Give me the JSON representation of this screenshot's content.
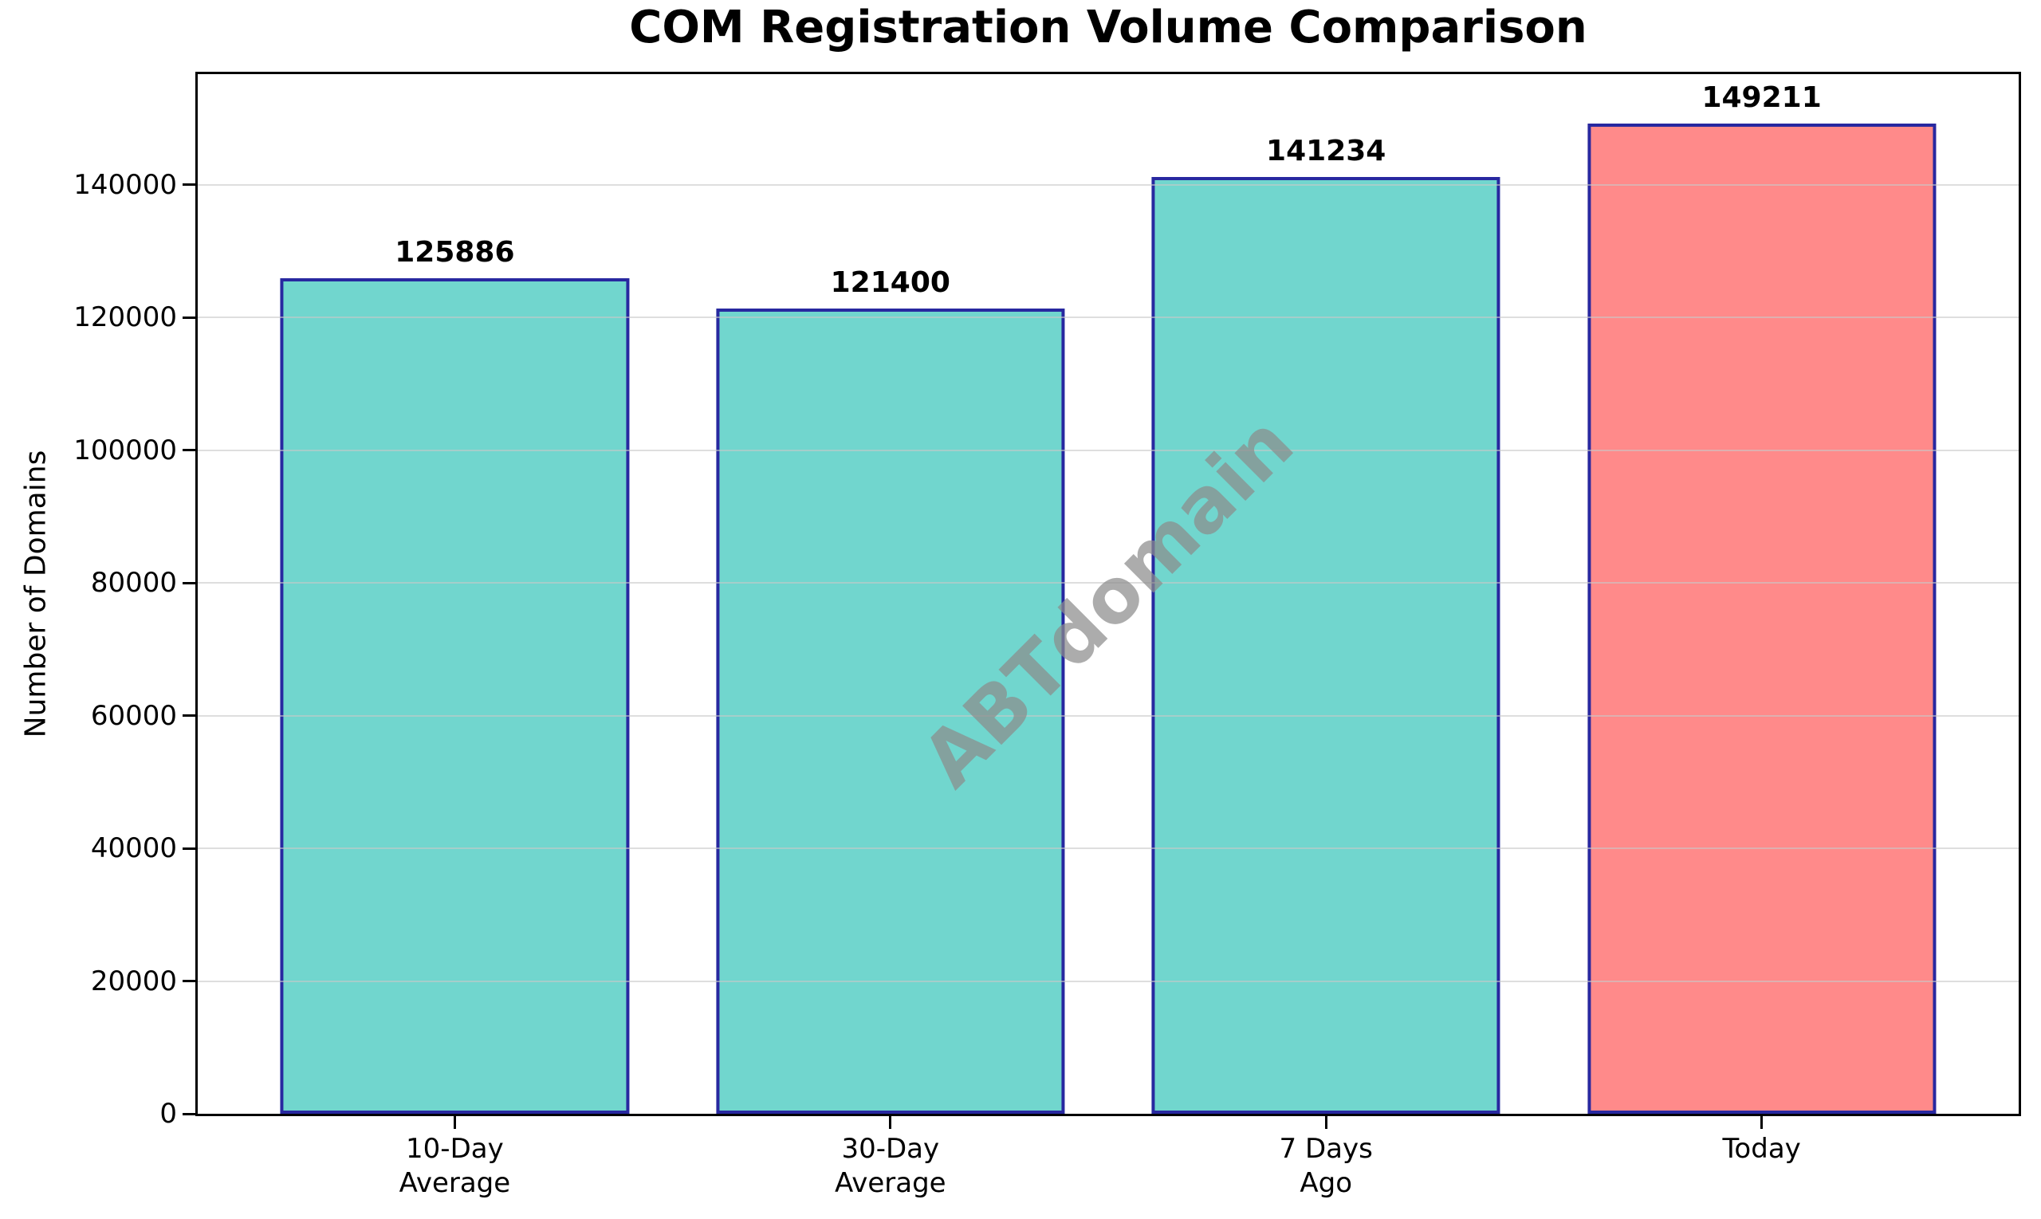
{
  "chart_data": {
    "type": "bar",
    "title": "COM Registration Volume Comparison",
    "ylabel": "Number of Domains",
    "xlabel": "",
    "categories": [
      [
        "10-Day",
        "Average"
      ],
      [
        "30-Day",
        "Average"
      ],
      [
        "7 Days",
        "Ago"
      ],
      [
        "Today"
      ]
    ],
    "values": [
      125886,
      121400,
      141234,
      149211
    ],
    "value_labels": [
      "125886",
      "121400",
      "141234",
      "149211"
    ],
    "bar_colors": [
      "#71D6CE",
      "#71D6CE",
      "#71D6CE",
      "#FF8A8A"
    ],
    "bar_edge_color": "#2828A0",
    "yticks": [
      0,
      20000,
      40000,
      60000,
      80000,
      100000,
      120000,
      140000
    ],
    "ytick_labels": [
      "0",
      "20000",
      "40000",
      "60000",
      "80000",
      "100000",
      "120000",
      "140000"
    ],
    "ylim": [
      0,
      156672
    ],
    "xlim": [
      -0.59,
      3.59
    ],
    "bar_width_units": 0.8,
    "grid": "horizontal-only, drawn over bars",
    "gridline_color": "rgba(200,200,200,0.6)",
    "legend": "none",
    "watermark": "ABTdomain"
  }
}
